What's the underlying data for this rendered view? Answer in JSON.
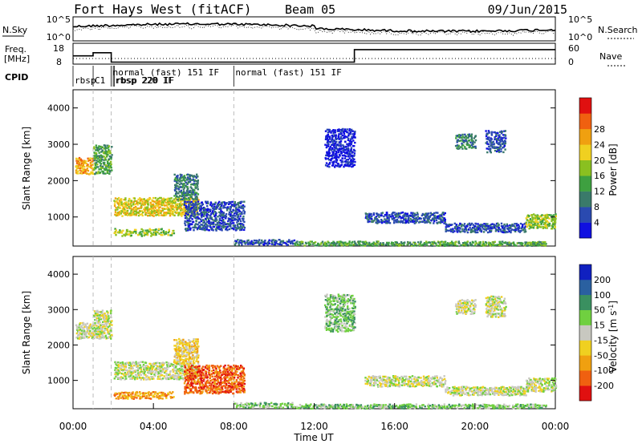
{
  "header": {
    "radar": "Fort Hays West (fitACF)",
    "beam": "Beam 05",
    "date": "09/Jun/2015"
  },
  "params": {
    "nsky_label": "N.Sky",
    "nsky_ticks": [
      "10^5",
      "10^0"
    ],
    "nsearch_label": "N.Search",
    "nsearch_ticks": [
      "10^5",
      "10^0"
    ],
    "freq_label": "Freq.",
    "freq_unit": "[MHz]",
    "freq_ticks": [
      "18",
      "8"
    ],
    "nave_label": "Nave",
    "nave_ticks": [
      "60",
      "0"
    ],
    "cpid_label": "CPID",
    "cpid_entries": [
      {
        "time": 0.0,
        "text": "rbsp"
      },
      {
        "time": 1.0,
        "text": "C1"
      },
      {
        "time": 1.9,
        "text": "normal (fast) 151 IF"
      },
      {
        "time": 2.0,
        "text": "rbsp 220 IF"
      },
      {
        "time": 2.05,
        "text": "rbsp 220 IF"
      },
      {
        "time": 8.0,
        "text": "normal (fast) 151 IF"
      }
    ],
    "freq_steps": [
      {
        "t0": 0.0,
        "t1": 1.0,
        "mhz": 13.5
      },
      {
        "t0": 1.0,
        "t1": 1.9,
        "mhz": 15.0
      },
      {
        "t0": 1.9,
        "t1": 14.0,
        "mhz": 10.5
      },
      {
        "t0": 14.0,
        "t1": 24.0,
        "mhz": 16.5
      }
    ]
  },
  "chart_data": [
    {
      "type": "heatmap",
      "name": "power",
      "ylabel": "Slant Range [km]",
      "xlabel": "",
      "xlim": [
        0,
        24
      ],
      "ylim": [
        200,
        4500
      ],
      "yticks": [
        "1000",
        "2000",
        "3000",
        "4000"
      ],
      "colorbar": {
        "label": "Power [dB]",
        "ticks": [
          "4",
          "8",
          "12",
          "16",
          "20",
          "24",
          "28"
        ],
        "colors": [
          "#1010e0",
          "#2a4ab0",
          "#3a7a6a",
          "#3ea040",
          "#8ac020",
          "#f0d020",
          "#f0a010",
          "#f06010",
          "#e01010"
        ]
      },
      "regions": [
        {
          "t0": 0.1,
          "t1": 1.0,
          "r0": 2200,
          "r1": 2650,
          "c": 6
        },
        {
          "t0": 1.0,
          "t1": 1.9,
          "r0": 2200,
          "r1": 3000,
          "c": 3
        },
        {
          "t0": 2.0,
          "t1": 6.2,
          "r0": 1050,
          "r1": 1550,
          "c": 5
        },
        {
          "t0": 2.0,
          "t1": 5.0,
          "r0": 500,
          "r1": 700,
          "c": 4
        },
        {
          "t0": 5.0,
          "t1": 6.2,
          "r0": 1500,
          "r1": 2200,
          "c": 2
        },
        {
          "t0": 5.5,
          "t1": 8.5,
          "r0": 650,
          "r1": 1450,
          "c": 1
        },
        {
          "t0": 8.0,
          "t1": 11.0,
          "r0": 250,
          "r1": 400,
          "c": 1
        },
        {
          "t0": 11.0,
          "t1": 23.5,
          "r0": 230,
          "r1": 350,
          "c": 3
        },
        {
          "t0": 14.5,
          "t1": 18.5,
          "r0": 850,
          "r1": 1150,
          "c": 1
        },
        {
          "t0": 18.5,
          "t1": 22.5,
          "r0": 600,
          "r1": 850,
          "c": 1
        },
        {
          "t0": 22.5,
          "t1": 24.0,
          "r0": 700,
          "r1": 1100,
          "c": 4
        },
        {
          "t0": 12.5,
          "t1": 14.0,
          "r0": 2400,
          "r1": 3450,
          "c": 0
        },
        {
          "t0": 19.0,
          "t1": 20.0,
          "r0": 2900,
          "r1": 3300,
          "c": 2
        },
        {
          "t0": 20.5,
          "t1": 21.5,
          "r0": 2800,
          "r1": 3400,
          "c": 1
        }
      ]
    },
    {
      "type": "heatmap",
      "name": "velocity",
      "ylabel": "Slant Range [km]",
      "xlabel": "Time UT",
      "xlim": [
        0,
        24
      ],
      "ylim": [
        200,
        4500
      ],
      "xticks": [
        "00:00",
        "04:00",
        "08:00",
        "12:00",
        "16:00",
        "20:00",
        "00:00"
      ],
      "yticks": [
        "1000",
        "2000",
        "3000",
        "4000"
      ],
      "colorbar": {
        "label": "Velocity [m s",
        "label_sup": "-1",
        "label_end": "]",
        "ticks": [
          "200",
          "100",
          "50",
          "15",
          "-15",
          "-50",
          "-100",
          "-200"
        ],
        "colors": [
          "#1020c0",
          "#2a60a0",
          "#3a9060",
          "#70d040",
          "#c8c8c0",
          "#f0d020",
          "#f0a010",
          "#f06010",
          "#e01010"
        ]
      },
      "regions": [
        {
          "t0": 0.1,
          "t1": 1.0,
          "r0": 2200,
          "r1": 2650,
          "c": 4
        },
        {
          "t0": 1.0,
          "t1": 1.9,
          "r0": 2200,
          "r1": 3000,
          "c": 4
        },
        {
          "t0": 2.0,
          "t1": 6.2,
          "r0": 1050,
          "r1": 1550,
          "c": 4
        },
        {
          "t0": 2.0,
          "t1": 5.0,
          "r0": 500,
          "r1": 700,
          "c": 6
        },
        {
          "t0": 5.0,
          "t1": 6.2,
          "r0": 1500,
          "r1": 2200,
          "c": 5
        },
        {
          "t0": 5.5,
          "t1": 8.5,
          "r0": 650,
          "r1": 1450,
          "c": 7
        },
        {
          "t0": 8.0,
          "t1": 11.0,
          "r0": 250,
          "r1": 400,
          "c": 3
        },
        {
          "t0": 11.0,
          "t1": 23.5,
          "r0": 230,
          "r1": 350,
          "c": 3
        },
        {
          "t0": 14.5,
          "t1": 18.5,
          "r0": 850,
          "r1": 1150,
          "c": 4
        },
        {
          "t0": 18.5,
          "t1": 22.5,
          "r0": 600,
          "r1": 850,
          "c": 4
        },
        {
          "t0": 22.5,
          "t1": 24.0,
          "r0": 700,
          "r1": 1100,
          "c": 4
        },
        {
          "t0": 12.5,
          "t1": 14.0,
          "r0": 2400,
          "r1": 3450,
          "c": 3
        },
        {
          "t0": 19.0,
          "t1": 20.0,
          "r0": 2900,
          "r1": 3300,
          "c": 4
        },
        {
          "t0": 20.5,
          "t1": 21.5,
          "r0": 2800,
          "r1": 3400,
          "c": 4
        }
      ]
    }
  ]
}
